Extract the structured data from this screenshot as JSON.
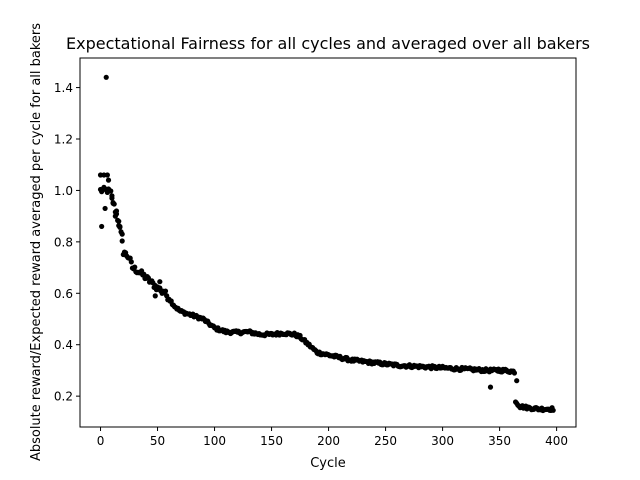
{
  "chart_data": {
    "type": "scatter",
    "title": "Expectational Fairness for all cycles and averaged over all bakers",
    "xlabel": "Cycle",
    "ylabel": "Absolute reward/Expected reward averaged per cycle for all bakers",
    "xlim": [
      -18,
      417
    ],
    "ylim": [
      0.08,
      1.515
    ],
    "xticks": [
      0,
      50,
      100,
      150,
      200,
      250,
      300,
      350,
      400
    ],
    "yticks": [
      0.2,
      0.4,
      0.6,
      0.8,
      1.0,
      1.2,
      1.4
    ],
    "ytick_labels": [
      "0.2",
      "0.4",
      "0.6",
      "0.8",
      "1.0",
      "1.2",
      "1.4"
    ],
    "grid": false,
    "marker_color": "#000000",
    "series": [
      {
        "keypoints": [
          [
            0,
            1.0
          ],
          [
            3,
            1.0
          ],
          [
            6,
            1.0
          ],
          [
            9,
            0.99
          ],
          [
            12,
            0.94
          ],
          [
            15,
            0.89
          ],
          [
            18,
            0.83
          ],
          [
            20,
            0.76
          ],
          [
            25,
            0.74
          ],
          [
            28,
            0.7
          ],
          [
            35,
            0.68
          ],
          [
            40,
            0.66
          ],
          [
            45,
            0.64
          ],
          [
            50,
            0.62
          ],
          [
            55,
            0.61
          ],
          [
            60,
            0.58
          ],
          [
            65,
            0.55
          ],
          [
            70,
            0.53
          ],
          [
            80,
            0.515
          ],
          [
            90,
            0.5
          ],
          [
            100,
            0.465
          ],
          [
            110,
            0.45
          ],
          [
            120,
            0.448
          ],
          [
            130,
            0.45
          ],
          [
            140,
            0.44
          ],
          [
            150,
            0.44
          ],
          [
            160,
            0.445
          ],
          [
            170,
            0.44
          ],
          [
            175,
            0.43
          ],
          [
            180,
            0.41
          ],
          [
            185,
            0.39
          ],
          [
            190,
            0.37
          ],
          [
            200,
            0.36
          ],
          [
            210,
            0.35
          ],
          [
            220,
            0.34
          ],
          [
            240,
            0.33
          ],
          [
            260,
            0.32
          ],
          [
            280,
            0.315
          ],
          [
            300,
            0.31
          ],
          [
            320,
            0.305
          ],
          [
            340,
            0.3
          ],
          [
            355,
            0.3
          ],
          [
            363,
            0.295
          ],
          [
            364,
            0.18
          ],
          [
            368,
            0.16
          ],
          [
            375,
            0.155
          ],
          [
            385,
            0.15
          ],
          [
            397,
            0.15
          ]
        ],
        "outliers": [
          [
            0,
            1.06
          ],
          [
            1,
            0.86
          ],
          [
            3,
            1.06
          ],
          [
            4,
            0.93
          ],
          [
            5,
            1.44
          ],
          [
            6,
            1.06
          ],
          [
            7,
            1.04
          ],
          [
            8,
            1.0
          ],
          [
            10,
            0.97
          ],
          [
            11,
            0.95
          ],
          [
            13,
            0.9
          ],
          [
            14,
            0.92
          ],
          [
            16,
            0.88
          ],
          [
            17,
            0.86
          ],
          [
            19,
            0.83
          ],
          [
            21,
            0.76
          ],
          [
            48,
            0.59
          ],
          [
            52,
            0.645
          ],
          [
            54,
            0.6
          ],
          [
            342,
            0.235
          ],
          [
            365,
            0.26
          ],
          [
            349,
            0.305
          ]
        ]
      }
    ]
  }
}
